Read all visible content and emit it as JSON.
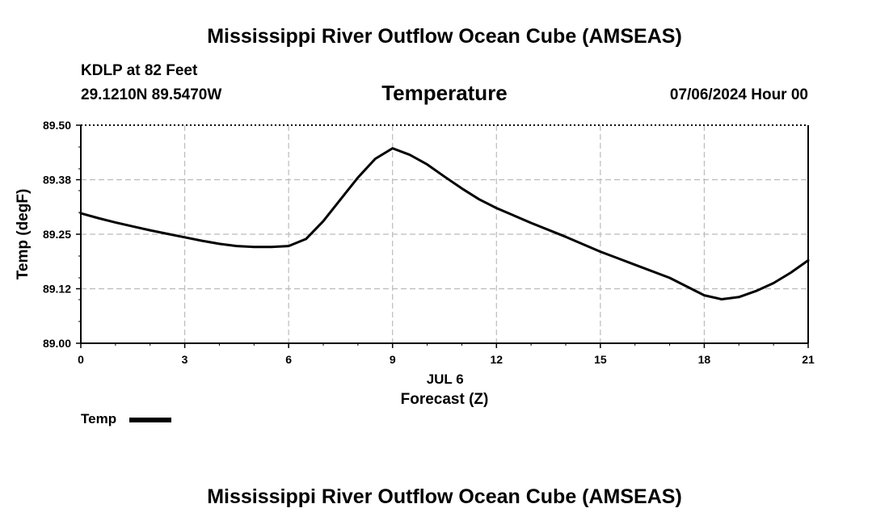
{
  "header": {
    "title": "Mississippi River Outflow Ocean Cube (AMSEAS)",
    "station": "KDLP at 82 Feet",
    "coords": "29.1210N  89.5470W",
    "datetime": "07/06/2024 Hour 00",
    "footer_title": "Mississippi River Outflow Ocean Cube (AMSEAS)"
  },
  "chart_data": {
    "type": "line",
    "title": "Temperature",
    "xlabel": "Forecast (Z)",
    "xsublabel": "JUL 6",
    "ylabel": "Temp (degF)",
    "xlim": [
      0,
      21
    ],
    "ylim": [
      89.0,
      89.5
    ],
    "xticks": [
      0,
      3,
      6,
      9,
      12,
      15,
      18,
      21
    ],
    "xtick_labels": [
      "0",
      "3",
      "6",
      "9",
      "12",
      "15",
      "18",
      "21"
    ],
    "yticks": [
      89.0,
      89.125,
      89.25,
      89.375,
      89.5
    ],
    "ytick_labels": [
      "89.00",
      "89.12",
      "89.25",
      "89.38",
      "89.50"
    ],
    "grid": true,
    "legend_position": "bottom-left",
    "series": [
      {
        "name": "Temp",
        "color": "#000000",
        "x": [
          0,
          0.5,
          1,
          1.5,
          2,
          2.5,
          3,
          3.5,
          4,
          4.5,
          5,
          5.5,
          6,
          6.5,
          7,
          7.5,
          8,
          8.5,
          9,
          9.5,
          10,
          10.5,
          11,
          11.5,
          12,
          13,
          14,
          15,
          16,
          17,
          18,
          18.5,
          19,
          19.5,
          20,
          20.5,
          21
        ],
        "y": [
          89.298,
          89.287,
          89.277,
          89.268,
          89.259,
          89.251,
          89.243,
          89.235,
          89.228,
          89.223,
          89.221,
          89.221,
          89.223,
          89.239,
          89.28,
          89.33,
          89.38,
          89.423,
          89.447,
          89.432,
          89.41,
          89.382,
          89.355,
          89.33,
          89.31,
          89.276,
          89.244,
          89.21,
          89.18,
          89.15,
          89.11,
          89.101,
          89.106,
          89.12,
          89.138,
          89.162,
          89.19
        ]
      }
    ]
  }
}
